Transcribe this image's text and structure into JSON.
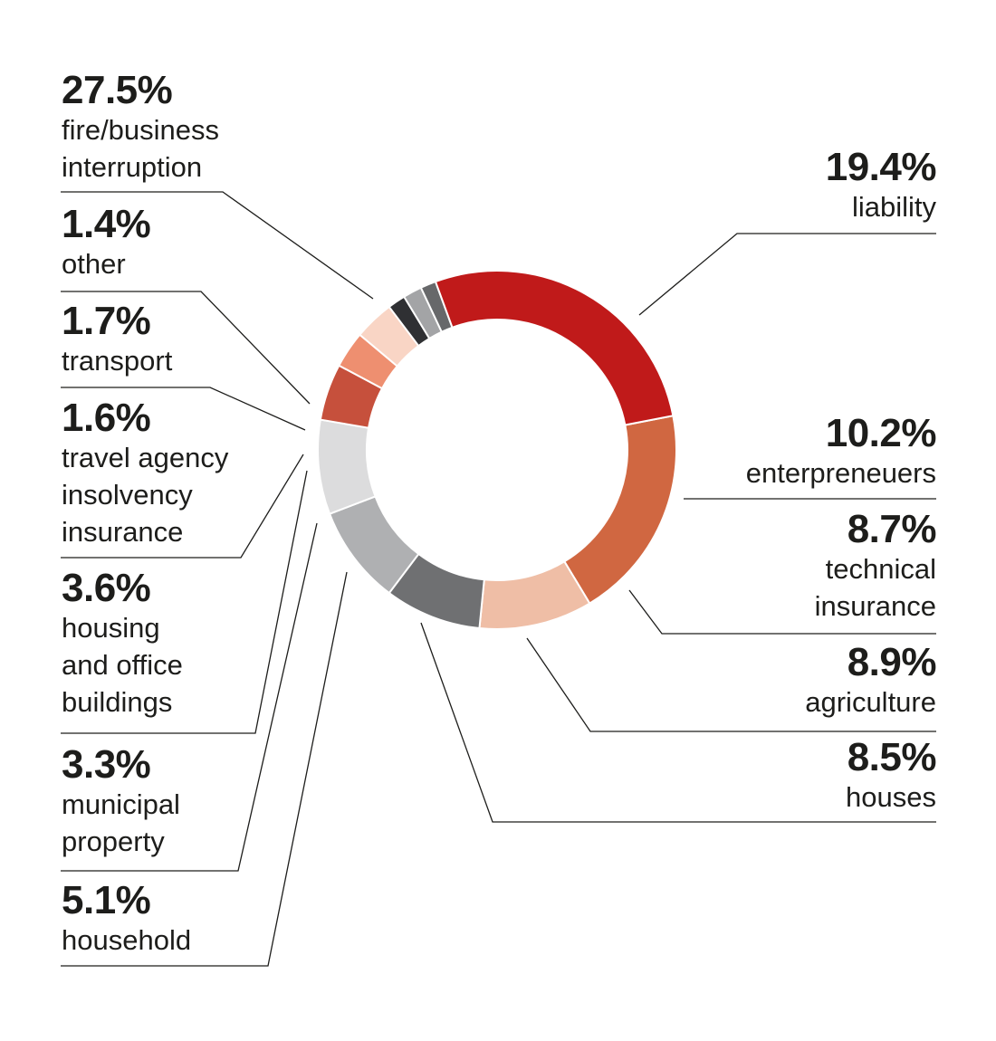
{
  "chart_data": {
    "type": "pie",
    "donut": true,
    "slices": [
      {
        "label": "liability",
        "value": 19.4,
        "pct_text": "19.4%",
        "color": "#d06741"
      },
      {
        "label": "enterpreneuers",
        "value": 10.2,
        "pct_text": "10.2%",
        "color": "#efbea6"
      },
      {
        "label": "technical \ninsurance",
        "value": 8.7,
        "pct_text": "8.7%",
        "color": "#6f7072"
      },
      {
        "label": "agriculture",
        "value": 8.9,
        "pct_text": "8.9%",
        "color": "#afb0b2"
      },
      {
        "label": "houses",
        "value": 8.5,
        "pct_text": "8.5%",
        "color": "#dcdcdd"
      },
      {
        "label": "household",
        "value": 5.1,
        "pct_text": "5.1%",
        "color": "#c6503c"
      },
      {
        "label": "municipal\nproperty",
        "value": 3.3,
        "pct_text": "3.3%",
        "color": "#ee8f70"
      },
      {
        "label": "housing\nand office\nbuildings",
        "value": 3.6,
        "pct_text": "3.6%",
        "color": "#f9d5c5"
      },
      {
        "label": "travel agency\ninsolvency\ninsurance",
        "value": 1.6,
        "pct_text": "1.6%",
        "color": "#2f3033"
      },
      {
        "label": "transport",
        "value": 1.7,
        "pct_text": "1.7%",
        "color": "#a3a4a6"
      },
      {
        "label": "other",
        "value": 1.4,
        "pct_text": "1.4%",
        "color": "#67686a"
      },
      {
        "label": "fire/business\ninterruption",
        "value": 27.5,
        "pct_text": "27.5%",
        "color": "#c01a1a"
      }
    ]
  }
}
